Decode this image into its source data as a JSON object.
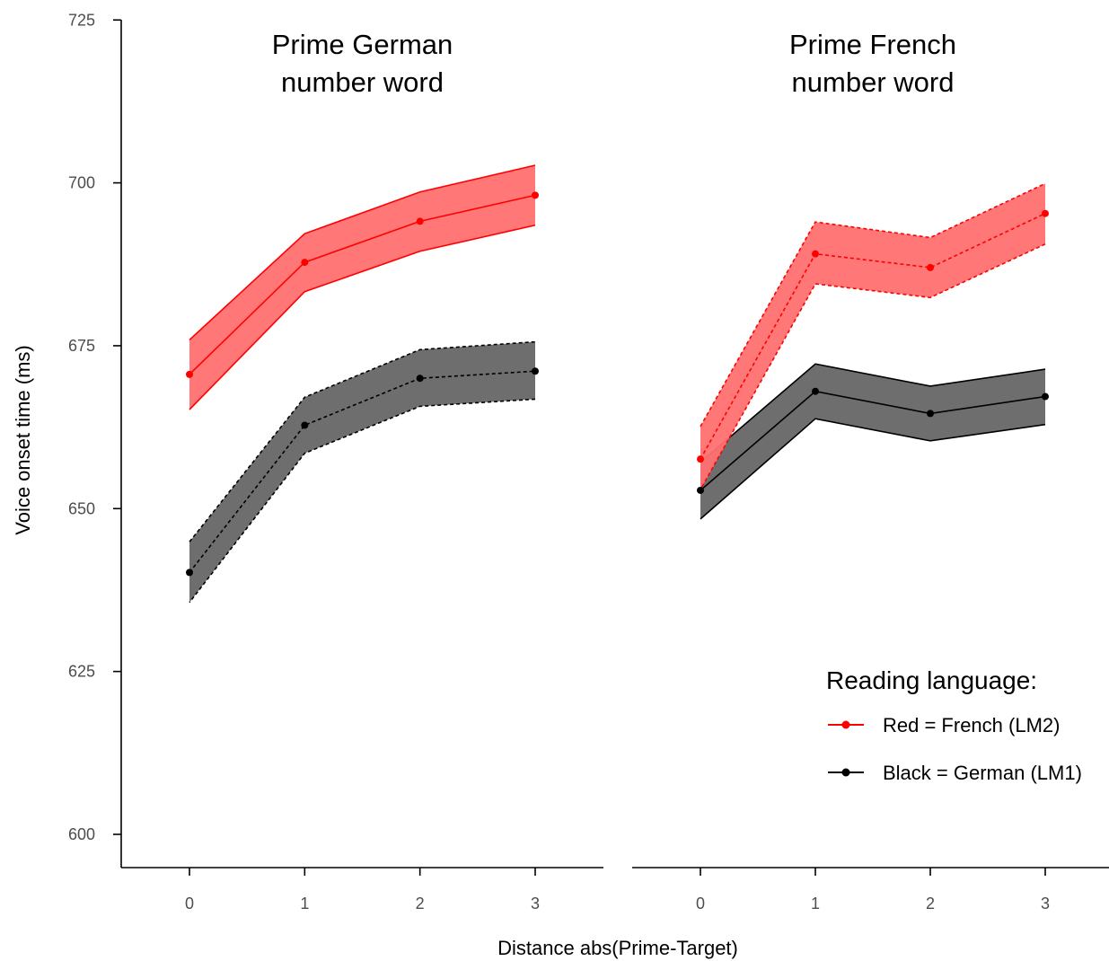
{
  "chart_data": {
    "type": "line",
    "ylabel": "Voice onset time (ms)",
    "xlabel": "Distance abs(Prime-Target)",
    "ylim": [
      596,
      726
    ],
    "yticks": [
      600,
      625,
      650,
      675,
      700,
      725
    ],
    "x": [
      0,
      1,
      2,
      3
    ],
    "xlim": [
      -0.6,
      3.6
    ],
    "grid": false,
    "colors": {
      "red": "#ff0000",
      "red_fill": "#ff7070",
      "black": "#000000",
      "black_fill": "#6e6e6e"
    },
    "panels": [
      {
        "title_line1": "Prime German",
        "title_line2": "number word",
        "series": [
          {
            "key": "red",
            "style": "solid",
            "values": [
              670.6,
              687.8,
              694.1,
              698.1
            ],
            "lower": [
              665.2,
              683.3,
              689.5,
              693.5
            ],
            "upper": [
              675.9,
              692.2,
              698.6,
              702.7
            ]
          },
          {
            "key": "black",
            "style": "dashed",
            "values": [
              640.2,
              662.8,
              670.0,
              671.1
            ],
            "lower": [
              635.6,
              658.5,
              665.7,
              666.8
            ],
            "upper": [
              644.9,
              667.1,
              674.4,
              675.6
            ]
          }
        ]
      },
      {
        "title_line1": "Prime French",
        "title_line2": "number word",
        "series": [
          {
            "key": "red",
            "style": "dashed",
            "values": [
              657.6,
              689.1,
              687.0,
              695.3
            ],
            "lower": [
              652.9,
              684.5,
              682.4,
              690.6
            ],
            "upper": [
              662.6,
              694.0,
              691.6,
              699.9
            ]
          },
          {
            "key": "black",
            "style": "solid",
            "values": [
              652.8,
              668.0,
              664.6,
              667.2
            ],
            "lower": [
              648.4,
              663.8,
              660.4,
              662.9
            ],
            "upper": [
              657.1,
              672.2,
              668.8,
              671.4
            ]
          }
        ]
      }
    ],
    "legend": {
      "title": "Reading language:",
      "placement": "bottom-right",
      "items": [
        {
          "key": "red",
          "label": "Red = French (LM2)"
        },
        {
          "key": "black",
          "label": "Black = German (LM1)"
        }
      ]
    }
  }
}
